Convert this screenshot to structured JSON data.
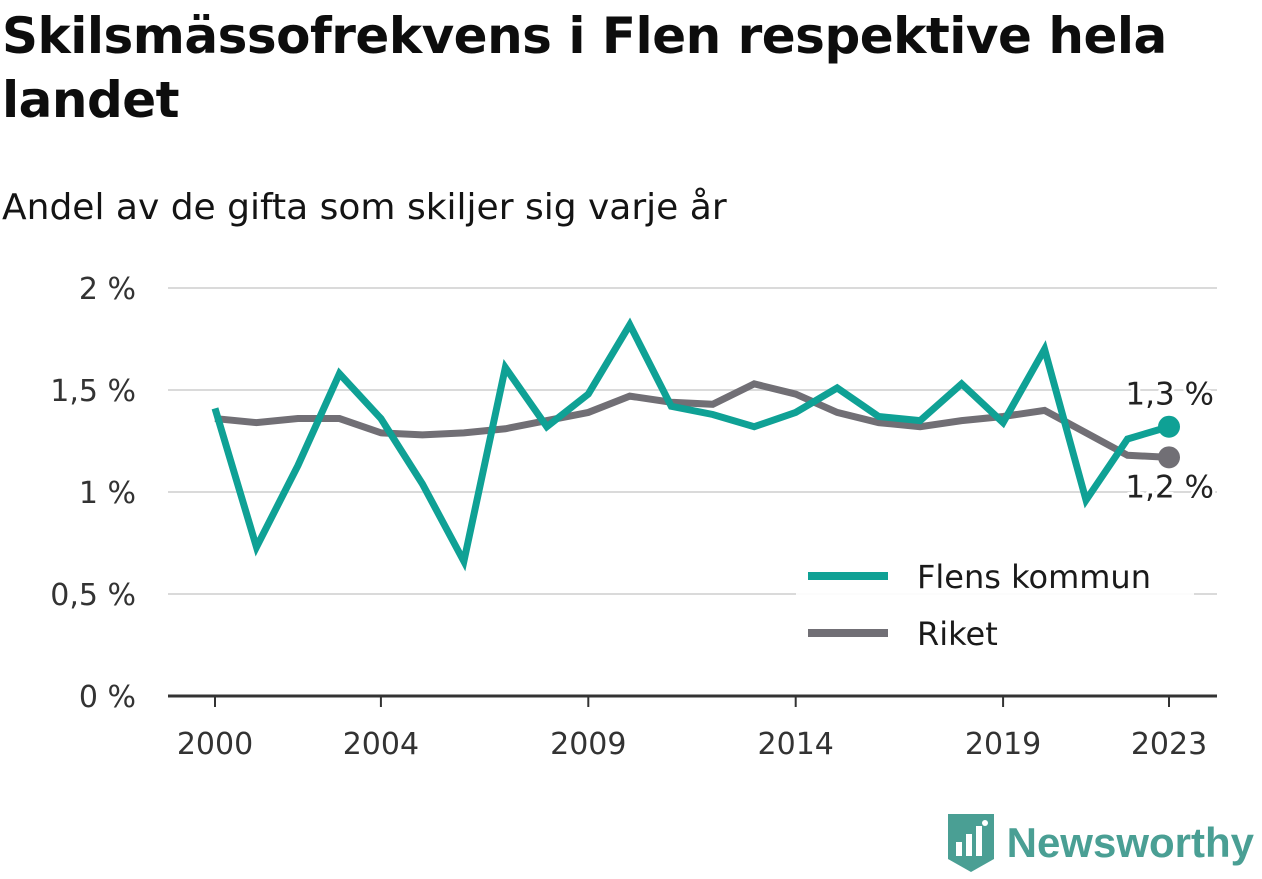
{
  "title": "Skilsmässofrekvens i Flen respektive hela landet",
  "subtitle": "Andel av de gifta som skiljer sig varje år",
  "brand": {
    "name": "Newsworthy",
    "color": "#4a9f94"
  },
  "chart_data": {
    "type": "line",
    "title": "Skilsmässofrekvens i Flen respektive hela landet",
    "subtitle": "Andel av de gifta som skiljer sig varje år",
    "xlabel": "",
    "ylabel": "",
    "x": [
      2000,
      2001,
      2002,
      2003,
      2004,
      2005,
      2006,
      2007,
      2008,
      2009,
      2010,
      2011,
      2012,
      2013,
      2014,
      2015,
      2016,
      2017,
      2018,
      2019,
      2020,
      2021,
      2022,
      2023
    ],
    "xticks": [
      2000,
      2004,
      2009,
      2014,
      2019,
      2023
    ],
    "xlim": [
      2000,
      2023
    ],
    "ylim": [
      0,
      2
    ],
    "yticks": [
      0,
      0.5,
      1,
      1.5,
      2
    ],
    "ytick_labels": [
      "0 %",
      "0,5 %",
      "1 %",
      "1,5 %",
      "2 %"
    ],
    "grid": "horizontal",
    "legend_position": "bottom-right",
    "series": [
      {
        "name": "Flens kommun",
        "color": "#0fa195",
        "values": [
          1.41,
          0.73,
          1.13,
          1.58,
          1.36,
          1.04,
          0.66,
          1.61,
          1.32,
          1.48,
          1.82,
          1.42,
          1.38,
          1.32,
          1.39,
          1.51,
          1.37,
          1.35,
          1.53,
          1.34,
          1.7,
          0.96,
          1.26,
          1.32
        ],
        "end_label": "1,3 %"
      },
      {
        "name": "Riket",
        "color": "#716f75",
        "values": [
          1.36,
          1.34,
          1.36,
          1.36,
          1.29,
          1.28,
          1.29,
          1.31,
          1.35,
          1.39,
          1.47,
          1.44,
          1.43,
          1.53,
          1.48,
          1.39,
          1.34,
          1.32,
          1.35,
          1.37,
          1.4,
          1.29,
          1.18,
          1.17
        ],
        "end_label": "1,2 %"
      }
    ]
  }
}
